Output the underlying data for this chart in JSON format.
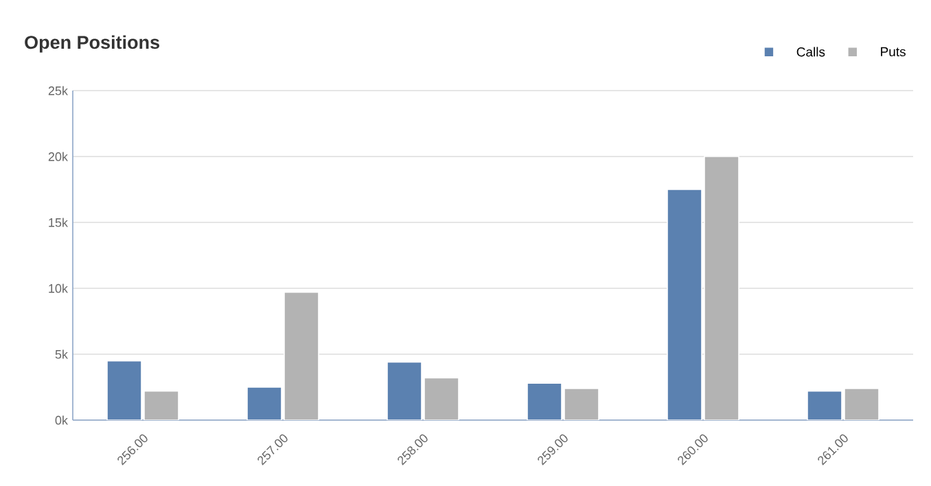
{
  "chart_data": {
    "type": "bar",
    "title": "Open Positions",
    "categories": [
      "256.00",
      "257.00",
      "258.00",
      "259.00",
      "260.00",
      "261.00"
    ],
    "series": [
      {
        "name": "Calls",
        "color": "#5b81b0",
        "values": [
          4500,
          2500,
          4400,
          2800,
          17500,
          2200
        ]
      },
      {
        "name": "Puts",
        "color": "#b3b3b3",
        "values": [
          2200,
          9700,
          3200,
          2400,
          20000,
          2400
        ]
      }
    ],
    "ylim": [
      0,
      25000
    ],
    "yticks": [
      {
        "value": 0,
        "label": "0k"
      },
      {
        "value": 5000,
        "label": "5k"
      },
      {
        "value": 10000,
        "label": "10k"
      },
      {
        "value": 15000,
        "label": "15k"
      },
      {
        "value": 20000,
        "label": "20k"
      },
      {
        "value": 25000,
        "label": "25k"
      }
    ],
    "grid": "y",
    "legend": "top right"
  }
}
